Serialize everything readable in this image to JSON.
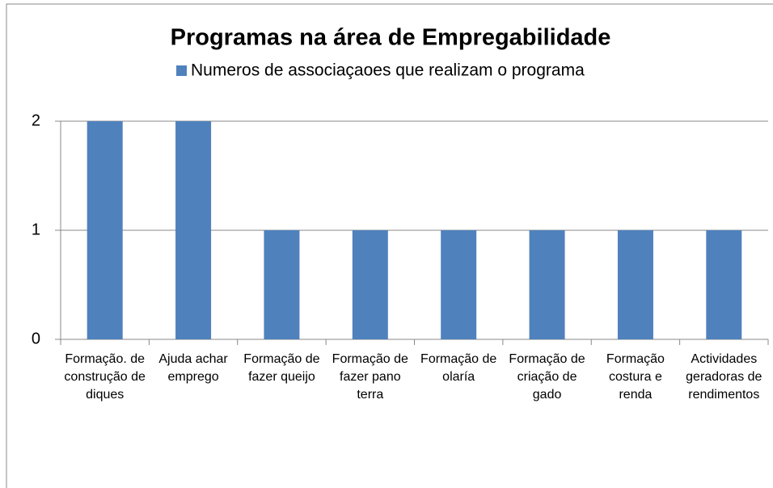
{
  "chart_data": {
    "type": "bar",
    "title": "Programas na área de Empregabilidade",
    "categories": [
      "Formação. de construção de diques",
      "Ajuda achar emprego",
      "Formação de fazer queijo",
      "Formação de fazer pano terra",
      "Formação de olaría",
      "Formação de criação de gado",
      "Formação costura e renda",
      "Actividades geradoras de rendimentos"
    ],
    "series": [
      {
        "name": "Numeros de associaçaoes que realizam o programa",
        "color": "#4f81bd",
        "values": [
          2,
          2,
          1,
          1,
          1,
          1,
          1,
          1
        ]
      }
    ],
    "ylim": [
      0,
      2
    ],
    "yticks": [
      0,
      1,
      2
    ],
    "grid": true,
    "legend": "top"
  }
}
